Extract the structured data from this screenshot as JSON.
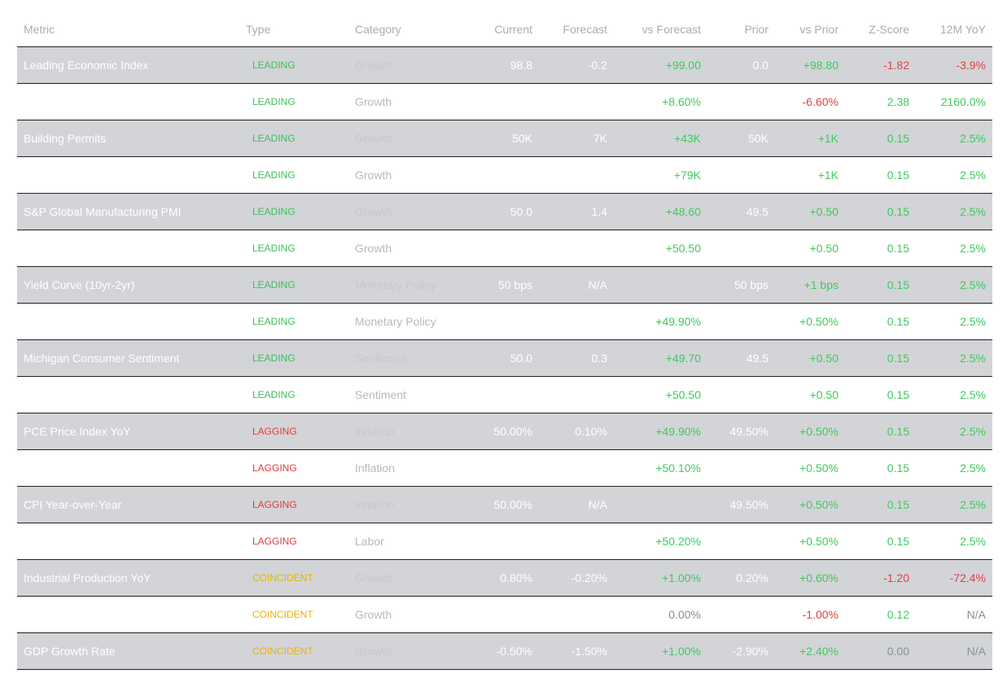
{
  "header": {
    "metric": "Metric",
    "type": "Type",
    "category": "Category",
    "current": "Current",
    "forecast": "Forecast",
    "vs_forecast": "vs Forecast",
    "prior": "Prior",
    "vs_prior": "vs Prior",
    "zscore": "Z-Score",
    "yoy": "12M YoY"
  },
  "rows": [
    {
      "metric": "Leading Economic Index",
      "type": "LEADING",
      "category": "Growth",
      "current": "98.8",
      "forecast": "-0.2",
      "vs_forecast": "+99.00",
      "prior": "0.0",
      "vs_prior": "+98.80",
      "zscore": "-1.82",
      "yoy": "-3.9%"
    },
    {
      "metric": "",
      "type": "LEADING",
      "category": "Growth",
      "current": "",
      "forecast": "",
      "vs_forecast": "+8.60%",
      "prior": "",
      "vs_prior": "-6.60%",
      "zscore": "2.38",
      "yoy": "2160.0%"
    },
    {
      "metric": "Building Permits",
      "type": "LEADING",
      "category": "Growth",
      "current": "50K",
      "forecast": "7K",
      "vs_forecast": "+43K",
      "prior": "50K",
      "vs_prior": "+1K",
      "zscore": "0.15",
      "yoy": "2.5%"
    },
    {
      "metric": "",
      "type": "LEADING",
      "category": "Growth",
      "current": "",
      "forecast": "",
      "vs_forecast": "+79K",
      "prior": "",
      "vs_prior": "+1K",
      "zscore": "0.15",
      "yoy": "2.5%"
    },
    {
      "metric": "S&P Global Manufacturing PMI",
      "type": "LEADING",
      "category": "Growth",
      "current": "50.0",
      "forecast": "1.4",
      "vs_forecast": "+48.60",
      "prior": "49.5",
      "vs_prior": "+0.50",
      "zscore": "0.15",
      "yoy": "2.5%"
    },
    {
      "metric": "",
      "type": "LEADING",
      "category": "Growth",
      "current": "",
      "forecast": "",
      "vs_forecast": "+50.50",
      "prior": "",
      "vs_prior": "+0.50",
      "zscore": "0.15",
      "yoy": "2.5%"
    },
    {
      "metric": "Yield Curve (10yr-2yr)",
      "type": "LEADING",
      "category": "Monetary Policy",
      "current": "50 bps",
      "forecast": "N/A",
      "vs_forecast": "",
      "prior": "50 bps",
      "vs_prior": "+1 bps",
      "zscore": "0.15",
      "yoy": "2.5%"
    },
    {
      "metric": "",
      "type": "LEADING",
      "category": "Monetary Policy",
      "current": "",
      "forecast": "",
      "vs_forecast": "+49.90%",
      "prior": "",
      "vs_prior": "+0.50%",
      "zscore": "0.15",
      "yoy": "2.5%"
    },
    {
      "metric": "Michigan Consumer Sentiment",
      "type": "LEADING",
      "category": "Sentiment",
      "current": "50.0",
      "forecast": "0.3",
      "vs_forecast": "+49.70",
      "prior": "49.5",
      "vs_prior": "+0.50",
      "zscore": "0.15",
      "yoy": "2.5%"
    },
    {
      "metric": "",
      "type": "LEADING",
      "category": "Sentiment",
      "current": "",
      "forecast": "",
      "vs_forecast": "+50.50",
      "prior": "",
      "vs_prior": "+0.50",
      "zscore": "0.15",
      "yoy": "2.5%"
    },
    {
      "metric": "PCE Price Index YoY",
      "type": "LAGGING",
      "category": "Inflation",
      "current": "50.00%",
      "forecast": "0.10%",
      "vs_forecast": "+49.90%",
      "prior": "49.50%",
      "vs_prior": "+0.50%",
      "zscore": "0.15",
      "yoy": "2.5%"
    },
    {
      "metric": "",
      "type": "LAGGING",
      "category": "Inflation",
      "current": "",
      "forecast": "",
      "vs_forecast": "+50.10%",
      "prior": "",
      "vs_prior": "+0.50%",
      "zscore": "0.15",
      "yoy": "2.5%"
    },
    {
      "metric": "CPI Year-over-Year",
      "type": "LAGGING",
      "category": "Inflation",
      "current": "50.00%",
      "forecast": "N/A",
      "vs_forecast": "",
      "prior": "49.50%",
      "vs_prior": "+0.50%",
      "zscore": "0.15",
      "yoy": "2.5%"
    },
    {
      "metric": "",
      "type": "LAGGING",
      "category": "Labor",
      "current": "",
      "forecast": "",
      "vs_forecast": "+50.20%",
      "prior": "",
      "vs_prior": "+0.50%",
      "zscore": "0.15",
      "yoy": "2.5%"
    },
    {
      "metric": "Industrial Production YoY",
      "type": "COINCIDENT",
      "category": "Growth",
      "current": "0.80%",
      "forecast": "-0.20%",
      "vs_forecast": "+1.00%",
      "prior": "0.20%",
      "vs_prior": "+0.60%",
      "zscore": "-1.20",
      "yoy": "-72.4%"
    },
    {
      "metric": "",
      "type": "COINCIDENT",
      "category": "Growth",
      "current": "",
      "forecast": "",
      "vs_forecast": "0.00%",
      "prior": "",
      "vs_prior": "-1.00%",
      "zscore": "0.12",
      "yoy": "N/A"
    },
    {
      "metric": "GDP Growth Rate",
      "type": "COINCIDENT",
      "category": "Growth",
      "current": "-0.50%",
      "forecast": "-1.50%",
      "vs_forecast": "+1.00%",
      "prior": "-2.90%",
      "vs_prior": "+2.40%",
      "zscore": "0.00",
      "yoy": "N/A"
    }
  ],
  "colors": {
    "leading": "#39c25a",
    "lagging": "#e03a3a",
    "coincident": "#e7b400",
    "positive": "#3fca5d",
    "negative": "#e04242",
    "neutral": "#8a8d94",
    "row_shade": "#d3d4d8"
  }
}
